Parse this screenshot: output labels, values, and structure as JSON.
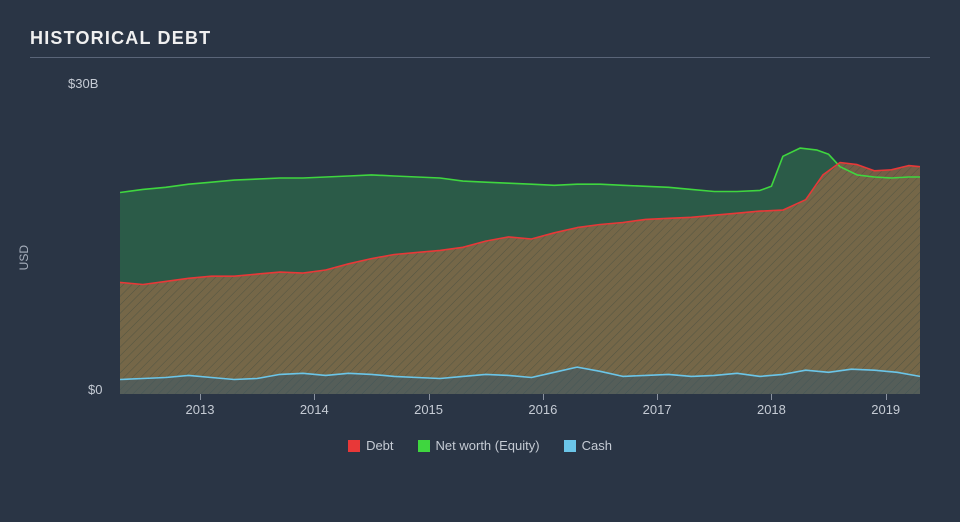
{
  "title": "HISTORICAL DEBT",
  "ylabel": "USD",
  "ytick_top": "$30B",
  "ytick_bot": "$0",
  "background_color": "#2a3545",
  "plot_background": "#2a3545",
  "title_fontsize": 18,
  "axis_fontsize": 13,
  "type": "area",
  "xlim": [
    2012.3,
    2019.3
  ],
  "ylim": [
    0,
    30
  ],
  "x_ticks": [
    2013,
    2014,
    2015,
    2016,
    2017,
    2018,
    2019
  ],
  "series": {
    "debt": {
      "label": "Debt",
      "line_color": "#e83838",
      "fill_color": "#8a6a48",
      "fill_opacity": 0.78,
      "hatch": true,
      "hatch_color": "#3e4a3e",
      "points": [
        [
          2012.3,
          10.8
        ],
        [
          2012.5,
          10.6
        ],
        [
          2012.7,
          10.9
        ],
        [
          2012.9,
          11.2
        ],
        [
          2013.1,
          11.4
        ],
        [
          2013.3,
          11.4
        ],
        [
          2013.5,
          11.6
        ],
        [
          2013.7,
          11.8
        ],
        [
          2013.9,
          11.7
        ],
        [
          2014.1,
          12.0
        ],
        [
          2014.3,
          12.6
        ],
        [
          2014.5,
          13.1
        ],
        [
          2014.7,
          13.5
        ],
        [
          2014.9,
          13.7
        ],
        [
          2015.1,
          13.9
        ],
        [
          2015.3,
          14.2
        ],
        [
          2015.5,
          14.8
        ],
        [
          2015.7,
          15.2
        ],
        [
          2015.9,
          15.0
        ],
        [
          2016.1,
          15.6
        ],
        [
          2016.3,
          16.1
        ],
        [
          2016.5,
          16.4
        ],
        [
          2016.7,
          16.6
        ],
        [
          2016.9,
          16.9
        ],
        [
          2017.1,
          17.0
        ],
        [
          2017.3,
          17.1
        ],
        [
          2017.5,
          17.3
        ],
        [
          2017.7,
          17.5
        ],
        [
          2017.9,
          17.7
        ],
        [
          2018.1,
          17.8
        ],
        [
          2018.3,
          18.8
        ],
        [
          2018.45,
          21.2
        ],
        [
          2018.6,
          22.4
        ],
        [
          2018.75,
          22.2
        ],
        [
          2018.9,
          21.6
        ],
        [
          2019.05,
          21.7
        ],
        [
          2019.2,
          22.1
        ],
        [
          2019.3,
          22.0
        ]
      ]
    },
    "equity": {
      "label": "Net worth (Equity)",
      "line_color": "#3fd63f",
      "fill_color": "#2d6b4a",
      "fill_opacity": 0.72,
      "points": [
        [
          2012.3,
          19.5
        ],
        [
          2012.5,
          19.8
        ],
        [
          2012.7,
          20.0
        ],
        [
          2012.9,
          20.3
        ],
        [
          2013.1,
          20.5
        ],
        [
          2013.3,
          20.7
        ],
        [
          2013.5,
          20.8
        ],
        [
          2013.7,
          20.9
        ],
        [
          2013.9,
          20.9
        ],
        [
          2014.1,
          21.0
        ],
        [
          2014.3,
          21.1
        ],
        [
          2014.5,
          21.2
        ],
        [
          2014.7,
          21.1
        ],
        [
          2014.9,
          21.0
        ],
        [
          2015.1,
          20.9
        ],
        [
          2015.3,
          20.6
        ],
        [
          2015.5,
          20.5
        ],
        [
          2015.7,
          20.4
        ],
        [
          2015.9,
          20.3
        ],
        [
          2016.1,
          20.2
        ],
        [
          2016.3,
          20.3
        ],
        [
          2016.5,
          20.3
        ],
        [
          2016.7,
          20.2
        ],
        [
          2016.9,
          20.1
        ],
        [
          2017.1,
          20.0
        ],
        [
          2017.3,
          19.8
        ],
        [
          2017.5,
          19.6
        ],
        [
          2017.7,
          19.6
        ],
        [
          2017.9,
          19.7
        ],
        [
          2018.0,
          20.1
        ],
        [
          2018.1,
          23.0
        ],
        [
          2018.25,
          23.8
        ],
        [
          2018.4,
          23.6
        ],
        [
          2018.5,
          23.2
        ],
        [
          2018.6,
          22.0
        ],
        [
          2018.75,
          21.2
        ],
        [
          2018.9,
          21.0
        ],
        [
          2019.05,
          20.9
        ],
        [
          2019.2,
          21.0
        ],
        [
          2019.3,
          21.0
        ]
      ]
    },
    "cash": {
      "label": "Cash",
      "line_color": "#6bc5e8",
      "fill_color": "#3a5868",
      "fill_opacity": 0.55,
      "points": [
        [
          2012.3,
          1.4
        ],
        [
          2012.5,
          1.5
        ],
        [
          2012.7,
          1.6
        ],
        [
          2012.9,
          1.8
        ],
        [
          2013.1,
          1.6
        ],
        [
          2013.3,
          1.4
        ],
        [
          2013.5,
          1.5
        ],
        [
          2013.7,
          1.9
        ],
        [
          2013.9,
          2.0
        ],
        [
          2014.1,
          1.8
        ],
        [
          2014.3,
          2.0
        ],
        [
          2014.5,
          1.9
        ],
        [
          2014.7,
          1.7
        ],
        [
          2014.9,
          1.6
        ],
        [
          2015.1,
          1.5
        ],
        [
          2015.3,
          1.7
        ],
        [
          2015.5,
          1.9
        ],
        [
          2015.7,
          1.8
        ],
        [
          2015.9,
          1.6
        ],
        [
          2016.1,
          2.1
        ],
        [
          2016.3,
          2.6
        ],
        [
          2016.5,
          2.2
        ],
        [
          2016.7,
          1.7
        ],
        [
          2016.9,
          1.8
        ],
        [
          2017.1,
          1.9
        ],
        [
          2017.3,
          1.7
        ],
        [
          2017.5,
          1.8
        ],
        [
          2017.7,
          2.0
        ],
        [
          2017.9,
          1.7
        ],
        [
          2018.1,
          1.9
        ],
        [
          2018.3,
          2.3
        ],
        [
          2018.5,
          2.1
        ],
        [
          2018.7,
          2.4
        ],
        [
          2018.9,
          2.3
        ],
        [
          2019.1,
          2.1
        ],
        [
          2019.3,
          1.7
        ]
      ]
    }
  },
  "legend": [
    {
      "key": "debt",
      "swatch": "#e83838"
    },
    {
      "key": "equity",
      "swatch": "#3fd63f"
    },
    {
      "key": "cash",
      "swatch": "#6bc5e8"
    }
  ],
  "grid_color": "#5a6578",
  "line_width": 1.6
}
